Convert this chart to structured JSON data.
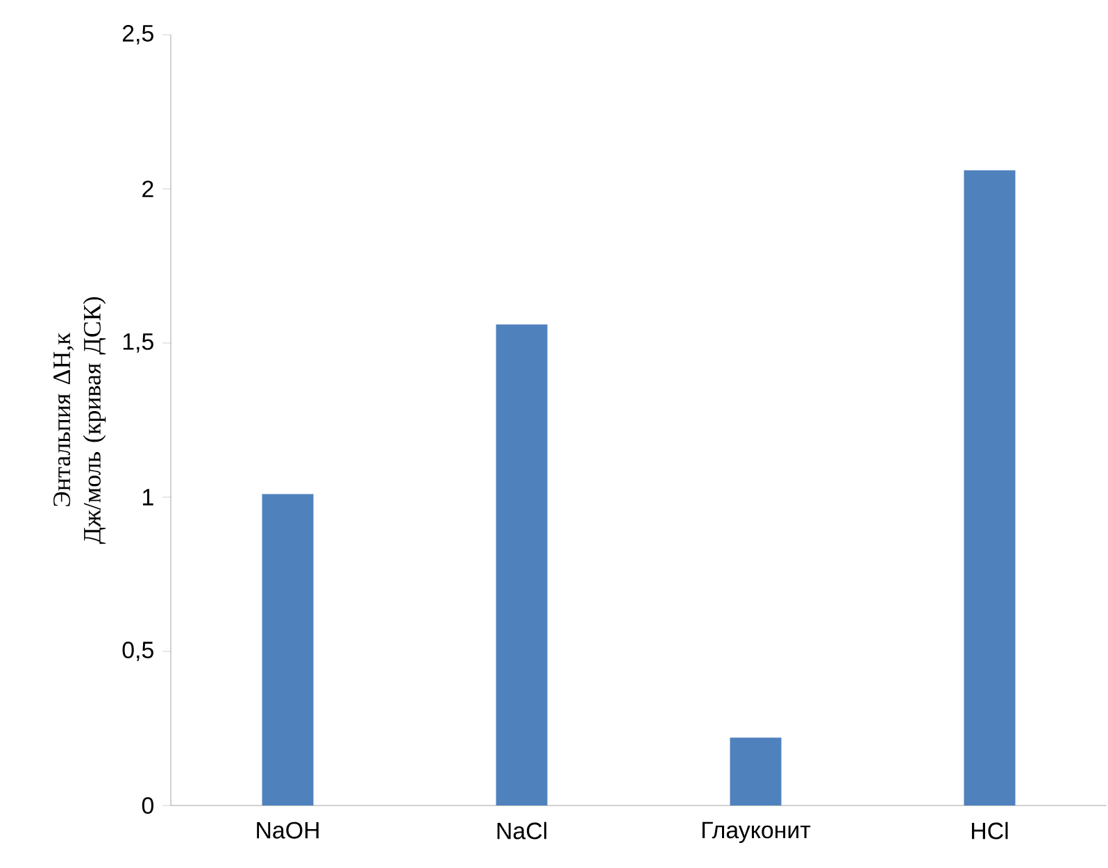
{
  "chart_data": {
    "type": "bar",
    "ylabel": "Энтальпия ΔН,к Дж/моль (кривая ДСК)",
    "categories": [
      "NaOH",
      "NaCl",
      "Глауконит",
      "HCl"
    ],
    "values": [
      1.01,
      1.56,
      0.22,
      2.06
    ],
    "color": "#4f81bd",
    "ylim": [
      0,
      2.5
    ],
    "yticks": [
      0,
      {
        "value": 0.5,
        "label": "0,5"
      },
      1,
      {
        "value": 1.5,
        "label": "1,5"
      },
      2,
      {
        "value": 2.5,
        "label": "2,5"
      }
    ],
    "grid": false
  }
}
